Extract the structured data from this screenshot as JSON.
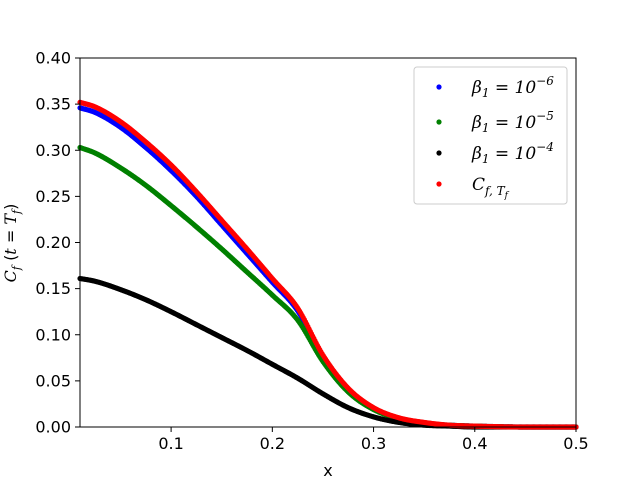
{
  "chart_data": {
    "type": "scatter",
    "xlabel": "x",
    "ylabel": "C_f (t = T_f)",
    "xlim": [
      0.01,
      0.5
    ],
    "ylim": [
      0.0,
      0.4
    ],
    "x_ticks": [
      "0.1",
      "0.2",
      "0.3",
      "0.4",
      "0.5"
    ],
    "y_ticks": [
      "0.00",
      "0.05",
      "0.10",
      "0.15",
      "0.20",
      "0.25",
      "0.30",
      "0.35",
      "0.40"
    ],
    "legend_position": "top-right",
    "x": [
      0.01,
      0.025,
      0.05,
      0.075,
      0.1,
      0.125,
      0.15,
      0.175,
      0.2,
      0.225,
      0.25,
      0.275,
      0.3,
      0.325,
      0.35,
      0.375,
      0.4,
      0.45,
      0.5
    ],
    "series": [
      {
        "name": "β₁ = 10⁻⁶",
        "color": "#0000ff",
        "values": [
          0.346,
          0.341,
          0.325,
          0.303,
          0.278,
          0.25,
          0.219,
          0.188,
          0.157,
          0.126,
          0.075,
          0.04,
          0.02,
          0.009,
          0.004,
          0.002,
          0.001,
          0.0,
          0.0
        ]
      },
      {
        "name": "β₁ = 10⁻⁵",
        "color": "#008000",
        "values": [
          0.303,
          0.297,
          0.281,
          0.262,
          0.24,
          0.217,
          0.193,
          0.168,
          0.143,
          0.116,
          0.071,
          0.038,
          0.019,
          0.009,
          0.004,
          0.002,
          0.001,
          0.0,
          0.0
        ]
      },
      {
        "name": "β₁ = 10⁻⁴",
        "color": "#000000",
        "values": [
          0.161,
          0.158,
          0.149,
          0.138,
          0.125,
          0.111,
          0.097,
          0.083,
          0.068,
          0.053,
          0.036,
          0.021,
          0.011,
          0.005,
          0.002,
          0.001,
          0.0,
          0.0,
          0.0
        ]
      },
      {
        "name": "C_{f,T_f}",
        "color": "#ff0000",
        "values": [
          0.352,
          0.347,
          0.331,
          0.309,
          0.284,
          0.255,
          0.224,
          0.193,
          0.161,
          0.129,
          0.078,
          0.042,
          0.021,
          0.01,
          0.005,
          0.002,
          0.001,
          0.0,
          0.0
        ]
      }
    ]
  }
}
